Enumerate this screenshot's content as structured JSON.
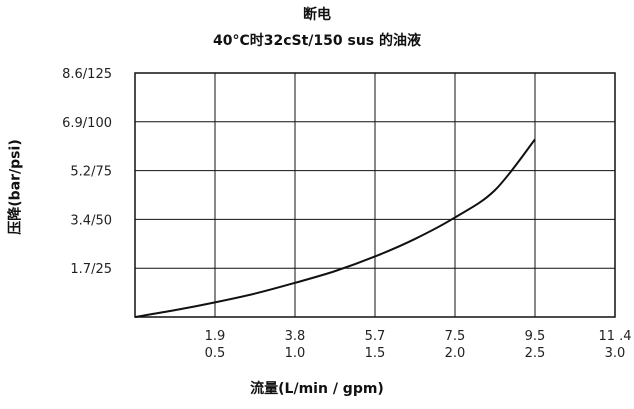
{
  "chart_data": {
    "type": "line",
    "title": "断电",
    "subtitle": "40°C时32cSt/150 sus 的油液",
    "xlabel": "流量(L/min / gpm)",
    "ylabel": "压降(bar/psi)",
    "x_ticks_lpm": [
      "1.9",
      "3.8",
      "5.7",
      "7.5",
      "9.5",
      "11 .4"
    ],
    "x_ticks_gpm": [
      "0.5",
      "1.0",
      "1.5",
      "2.0",
      "2.5",
      "3.0"
    ],
    "x_tick_values": [
      0.5,
      1.0,
      1.5,
      2.0,
      2.5,
      3.0
    ],
    "y_ticks": [
      "1.7/25",
      "3.4/50",
      "5.2/75",
      "6.9/100",
      "8.6/125"
    ],
    "y_tick_values": [
      25,
      50,
      75,
      100,
      125
    ],
    "xlim": [
      0,
      3.0
    ],
    "ylim": [
      0,
      125
    ],
    "grid": true,
    "series": [
      {
        "x": [
          0,
          0.25,
          0.5,
          0.75,
          1.0,
          1.25,
          1.5,
          1.75,
          2.0,
          2.25,
          2.5
        ],
        "y": [
          0,
          3.5,
          7.5,
          12,
          17.5,
          23.5,
          31,
          40,
          51,
          65,
          91
        ]
      }
    ]
  }
}
